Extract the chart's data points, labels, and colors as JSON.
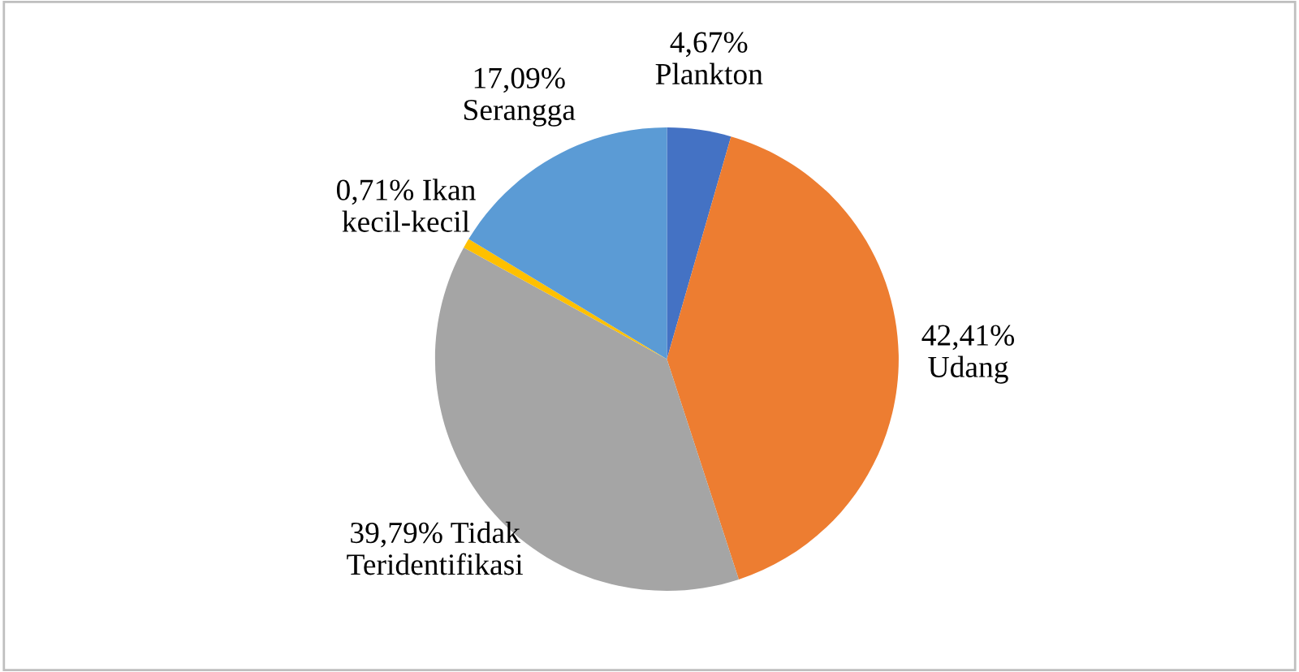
{
  "chart_data": {
    "type": "pie",
    "categories": [
      "Plankton",
      "Udang",
      "Tidak\nTeridentifikasi",
      "Ikan\nkecil-kecil",
      "Serangga"
    ],
    "values": [
      4.67,
      42.41,
      39.79,
      0.71,
      17.09
    ],
    "value_labels": [
      "4,67%",
      "42,41%",
      "39,79%",
      "0,71%",
      "17,09%"
    ],
    "colors": [
      "#4472c4",
      "#ed7d31",
      "#a5a5a5",
      "#ffc000",
      "#5b9bd5"
    ],
    "legend": false
  }
}
